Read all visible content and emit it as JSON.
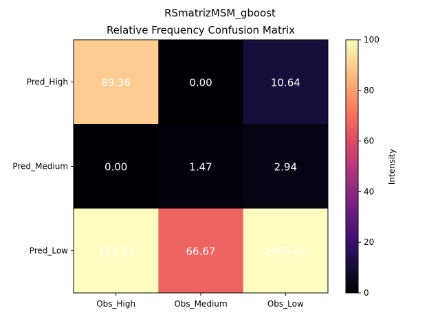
{
  "chart_data": {
    "type": "heatmap",
    "title": "RSmatrizMSM_gboost",
    "subtitle": "Relative Frequency Confusion Matrix",
    "x_categories": [
      "Obs_High",
      "Obs_Medium",
      "Obs_Low"
    ],
    "y_categories": [
      "Pred_High",
      "Pred_Medium",
      "Pred_Low"
    ],
    "values": [
      [
        89.36,
        0.0,
        10.64
      ],
      [
        0.0,
        1.47,
        2.94
      ],
      [
        133.33,
        66.67,
        2066.67
      ]
    ],
    "value_labels": [
      [
        "89.36",
        "0.00",
        "10.64"
      ],
      [
        "0.00",
        "1.47",
        "2.94"
      ],
      [
        "133.33",
        "66.67",
        "2066.67"
      ]
    ],
    "colormap": "magma",
    "color_range": [
      0,
      100
    ],
    "colorbar": {
      "label": "Intensity",
      "ticks": [
        0,
        20,
        40,
        60,
        80,
        100
      ],
      "tick_labels": [
        "0",
        "20",
        "40",
        "60",
        "80",
        "100"
      ]
    },
    "label_color": "#ffffff",
    "grid": false
  }
}
